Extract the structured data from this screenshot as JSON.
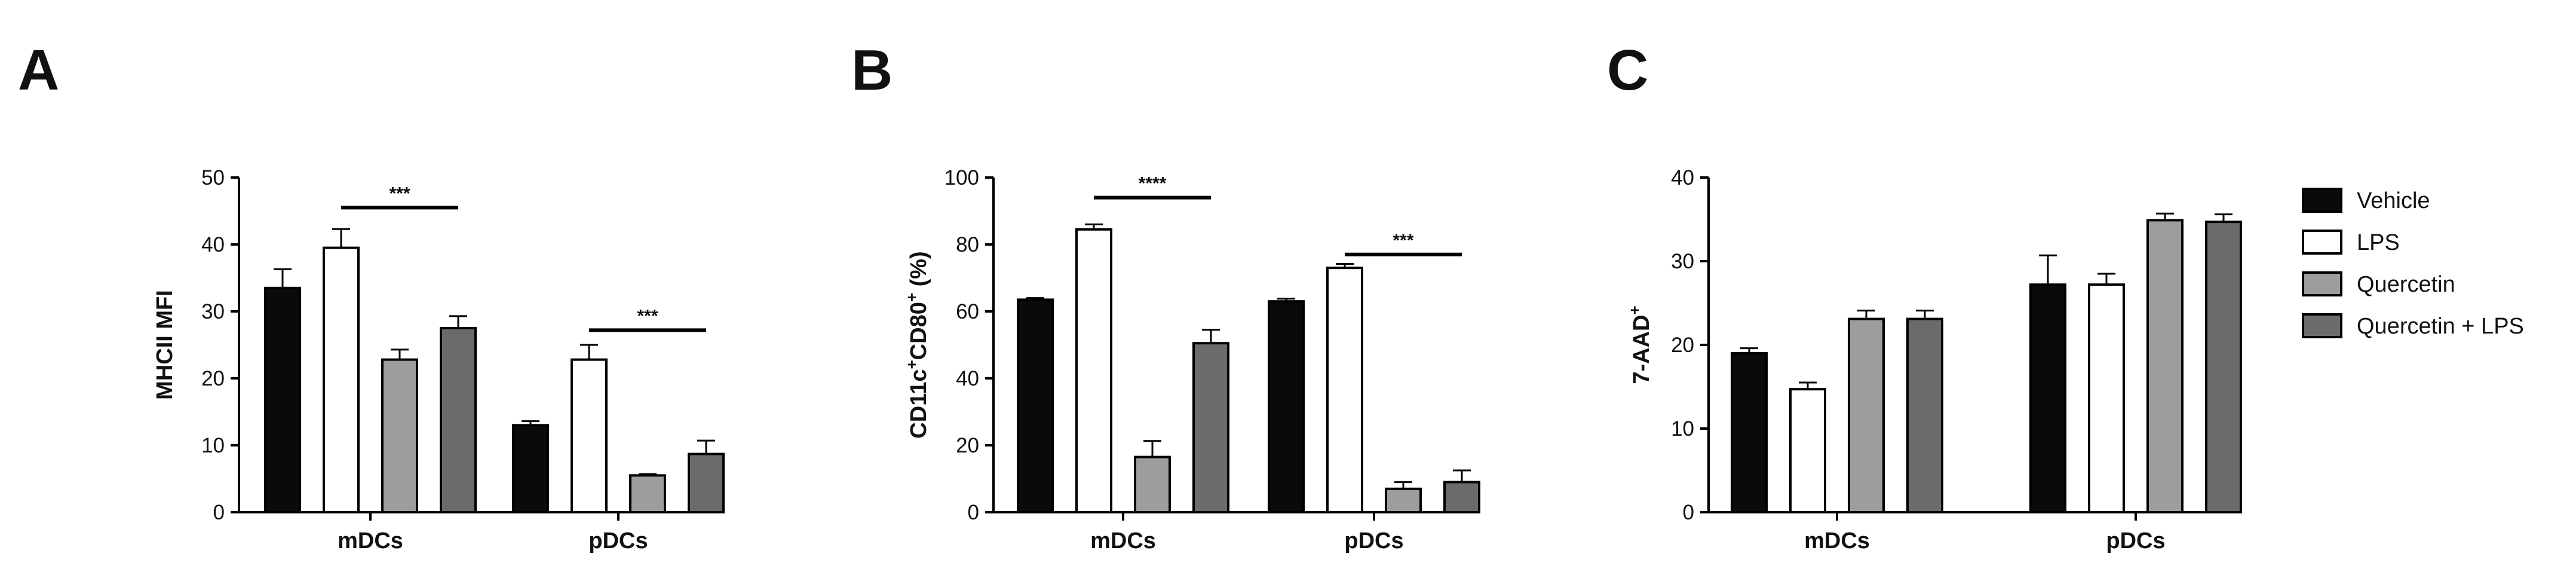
{
  "chart_data": [
    {
      "type": "bar",
      "panel": "A",
      "ylabel": "MHCII MFI",
      "ylabel_parts": [],
      "ylim": [
        0,
        50
      ],
      "yticks": [
        0,
        10,
        20,
        30,
        40,
        50
      ],
      "categories": [
        "mDCs",
        "pDCs"
      ],
      "series": [
        {
          "name": "Vehicle",
          "values": [
            33.5,
            13
          ],
          "errors": [
            2.8,
            0.6
          ]
        },
        {
          "name": "LPS",
          "values": [
            39.5,
            22.8
          ],
          "errors": [
            2.8,
            2.2
          ]
        },
        {
          "name": "Quercetin",
          "values": [
            22.8,
            5.5
          ],
          "errors": [
            1.5,
            0.2
          ]
        },
        {
          "name": "Quercetin + LPS",
          "values": [
            27.5,
            8.7
          ],
          "errors": [
            1.8,
            2.0
          ]
        }
      ],
      "significance": [
        {
          "category": 0,
          "label": "***",
          "level": 45.5
        },
        {
          "category": 1,
          "label": "***",
          "level": 27.2
        }
      ]
    },
    {
      "type": "bar",
      "panel": "B",
      "ylabel": "",
      "ylabel_parts": [
        {
          "text": "CD11c",
          "sup": false
        },
        {
          "text": "+",
          "sup": true
        },
        {
          "text": "CD80",
          "sup": false
        },
        {
          "text": "+",
          "sup": true
        },
        {
          "text": " (%)",
          "sup": false
        }
      ],
      "ylim": [
        0,
        100
      ],
      "yticks": [
        0,
        20,
        40,
        60,
        80,
        100
      ],
      "categories": [
        "mDCs",
        "pDCs"
      ],
      "series": [
        {
          "name": "Vehicle",
          "values": [
            63.5,
            63
          ],
          "errors": [
            0.5,
            0.8
          ]
        },
        {
          "name": "LPS",
          "values": [
            84.5,
            73
          ],
          "errors": [
            1.5,
            1.2
          ]
        },
        {
          "name": "Quercetin",
          "values": [
            16.5,
            7
          ],
          "errors": [
            4.8,
            2.0
          ]
        },
        {
          "name": "Quercetin + LPS",
          "values": [
            50.5,
            9
          ],
          "errors": [
            4.0,
            3.5
          ]
        }
      ],
      "significance": [
        {
          "category": 0,
          "label": "****",
          "level": 94
        },
        {
          "category": 1,
          "label": "***",
          "level": 77
        }
      ]
    },
    {
      "type": "bar",
      "panel": "C",
      "ylabel": "",
      "ylabel_parts": [
        {
          "text": "7-AAD",
          "sup": false
        },
        {
          "text": "+",
          "sup": true
        }
      ],
      "ylim": [
        0,
        40
      ],
      "yticks": [
        0,
        10,
        20,
        30,
        40
      ],
      "categories": [
        "mDCs",
        "pDCs"
      ],
      "series": [
        {
          "name": "Vehicle",
          "values": [
            19,
            27.2
          ],
          "errors": [
            0.6,
            3.5
          ]
        },
        {
          "name": "LPS",
          "values": [
            14.7,
            27.2
          ],
          "errors": [
            0.8,
            1.3
          ]
        },
        {
          "name": "Quercetin",
          "values": [
            23.1,
            34.9
          ],
          "errors": [
            1.0,
            0.8
          ]
        },
        {
          "name": "Quercetin + LPS",
          "values": [
            23.1,
            34.7
          ],
          "errors": [
            1.0,
            0.9
          ]
        }
      ],
      "significance": []
    }
  ],
  "series_colors": [
    "#0a0a0a",
    "#ffffff",
    "#9d9d9d",
    "#6b6b6b"
  ],
  "legend": {
    "placement": "right",
    "items": [
      "Vehicle",
      "LPS",
      "Quercetin",
      "Quercetin + LPS"
    ]
  }
}
